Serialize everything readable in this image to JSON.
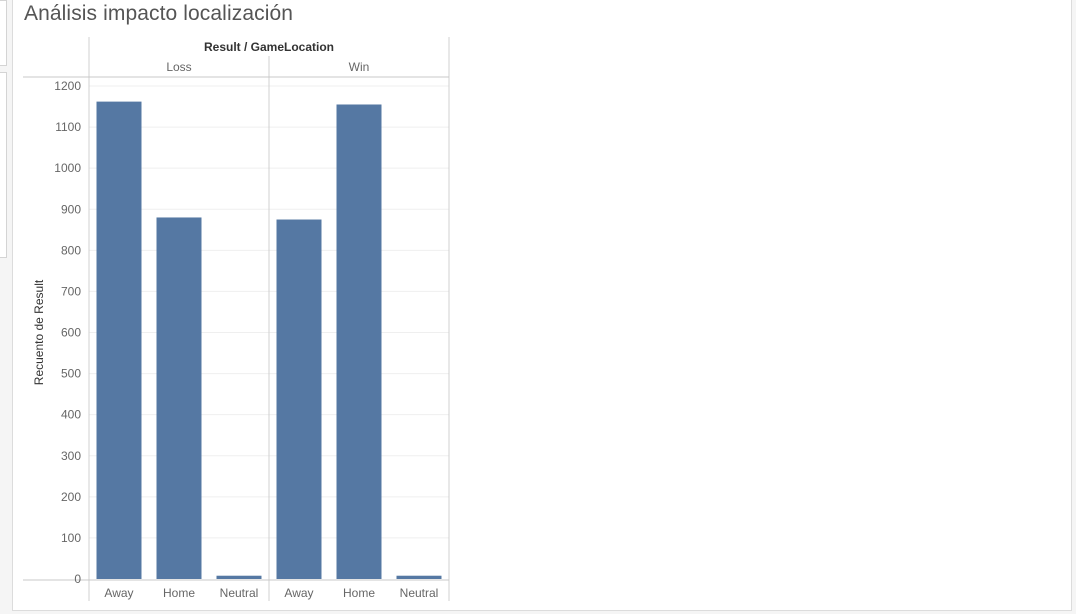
{
  "sheet": {
    "title": "Análisis impacto localización"
  },
  "chart_data": {
    "type": "bar",
    "header_title": "Result / GameLocation",
    "ylabel": "Recuento de Result",
    "ylim": [
      0,
      1200
    ],
    "yticks": [
      0,
      100,
      200,
      300,
      400,
      500,
      600,
      700,
      800,
      900,
      1000,
      1100,
      1200
    ],
    "panels": [
      {
        "name": "Loss",
        "categories": [
          "Away",
          "Home",
          "Neutral"
        ],
        "values": [
          1162,
          880,
          8
        ]
      },
      {
        "name": "Win",
        "categories": [
          "Away",
          "Home",
          "Neutral"
        ],
        "values": [
          875,
          1155,
          8
        ]
      }
    ],
    "bar_color": "#5578a3",
    "grid": true
  }
}
